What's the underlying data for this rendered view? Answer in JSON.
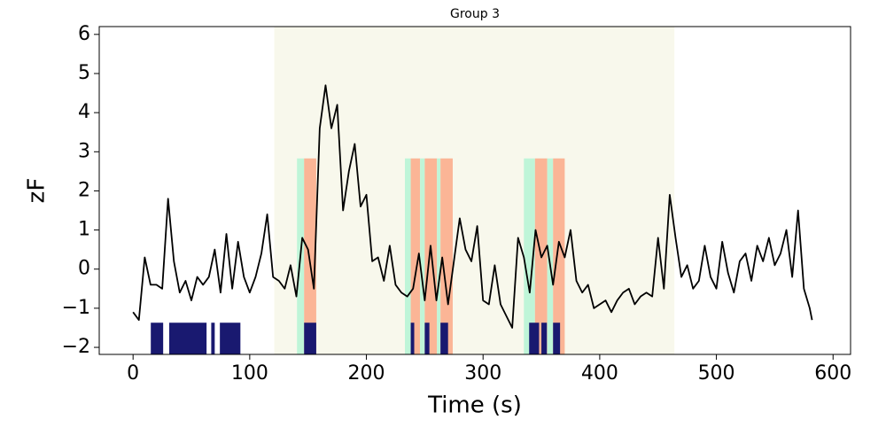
{
  "chart_data": {
    "type": "line",
    "title": "Group 3",
    "xlabel": "Time (s)",
    "ylabel": "zF",
    "xlim": [
      -29,
      615
    ],
    "ylim": [
      -2.18,
      6.2
    ],
    "xticks": [
      0,
      100,
      200,
      300,
      400,
      500,
      600
    ],
    "yticks": [
      {
        "value": -2,
        "label": "−2"
      },
      {
        "value": -1,
        "label": "−1"
      },
      0,
      1,
      2,
      3,
      4,
      5,
      6
    ],
    "regions": [
      {
        "x": [
          121,
          464
        ],
        "y": [
          -2.18,
          6.2
        ],
        "color": "#f8f8ec"
      },
      {
        "x": [
          140.5,
          146.6
        ],
        "y": [
          -2.18,
          2.83
        ],
        "color": "#bff5d8"
      },
      {
        "x": [
          146.6,
          157
        ],
        "y": [
          -2.18,
          2.83
        ],
        "color": "#fbb596"
      },
      {
        "x": [
          233,
          238
        ],
        "y": [
          -2.18,
          2.83
        ],
        "color": "#bff5d8"
      },
      {
        "x": [
          238,
          246
        ],
        "y": [
          -2.18,
          2.83
        ],
        "color": "#fbb596"
      },
      {
        "x": [
          246,
          250
        ],
        "y": [
          -2.18,
          2.83
        ],
        "color": "#bff5d8"
      },
      {
        "x": [
          250,
          260.5
        ],
        "y": [
          -2.18,
          2.83
        ],
        "color": "#fbb596"
      },
      {
        "x": [
          260.5,
          263.5
        ],
        "y": [
          -2.18,
          2.83
        ],
        "color": "#bff5d8"
      },
      {
        "x": [
          263.5,
          274
        ],
        "y": [
          -2.18,
          2.83
        ],
        "color": "#fbb596"
      },
      {
        "x": [
          335,
          344.5
        ],
        "y": [
          -2.18,
          2.83
        ],
        "color": "#bff5d8"
      },
      {
        "x": [
          344.5,
          355
        ],
        "y": [
          -2.18,
          2.83
        ],
        "color": "#fbb596"
      },
      {
        "x": [
          355,
          360
        ],
        "y": [
          -2.18,
          2.83
        ],
        "color": "#bff5d8"
      },
      {
        "x": [
          360,
          370
        ],
        "y": [
          -2.18,
          2.83
        ],
        "color": "#fbb596"
      },
      {
        "x": [
          15.2,
          25.8
        ],
        "y": [
          -2.18,
          -1.37
        ],
        "color": "#191970"
      },
      {
        "x": [
          31,
          63
        ],
        "y": [
          -2.18,
          -1.37
        ],
        "color": "#191970"
      },
      {
        "x": [
          67,
          70
        ],
        "y": [
          -2.18,
          -1.37
        ],
        "color": "#191970"
      },
      {
        "x": [
          74.4,
          92
        ],
        "y": [
          -2.18,
          -1.37
        ],
        "color": "#191970"
      },
      {
        "x": [
          146.6,
          157
        ],
        "y": [
          -2.18,
          -1.37
        ],
        "color": "#191970"
      },
      {
        "x": [
          238,
          241
        ],
        "y": [
          -2.18,
          -1.37
        ],
        "color": "#191970"
      },
      {
        "x": [
          250,
          254
        ],
        "y": [
          -2.18,
          -1.37
        ],
        "color": "#191970"
      },
      {
        "x": [
          263.5,
          270
        ],
        "y": [
          -2.18,
          -1.37
        ],
        "color": "#191970"
      },
      {
        "x": [
          339.5,
          348
        ],
        "y": [
          -2.18,
          -1.37
        ],
        "color": "#191970"
      },
      {
        "x": [
          350,
          354.7
        ],
        "y": [
          -2.18,
          -1.37
        ],
        "color": "#191970"
      },
      {
        "x": [
          360,
          366
        ],
        "y": [
          -2.18,
          -1.37
        ],
        "color": "#191970"
      }
    ],
    "x": [
      0,
      5,
      10,
      15,
      20,
      25,
      30,
      35,
      40,
      45,
      50,
      55,
      60,
      65,
      70,
      75,
      80,
      85,
      90,
      95,
      100,
      105,
      110,
      115,
      120,
      125,
      130,
      135,
      140,
      145,
      150,
      155,
      160,
      165,
      170,
      175,
      180,
      185,
      190,
      195,
      200,
      205,
      210,
      215,
      220,
      225,
      230,
      235,
      240,
      245,
      250,
      255,
      260,
      265,
      270,
      275,
      280,
      285,
      290,
      295,
      300,
      305,
      310,
      315,
      320,
      325,
      330,
      335,
      340,
      345,
      350,
      355,
      360,
      365,
      370,
      375,
      380,
      385,
      390,
      395,
      400,
      405,
      410,
      415,
      420,
      425,
      430,
      435,
      440,
      445,
      450,
      455,
      460,
      465,
      470,
      475,
      480,
      485,
      490,
      495,
      500,
      505,
      510,
      515,
      520,
      525,
      530,
      535,
      540,
      545,
      550,
      555,
      560,
      565,
      570,
      575,
      580,
      582
    ],
    "series": [
      {
        "color": "#000000",
        "values": [
          -1.1,
          -1.3,
          0.3,
          -0.4,
          -0.4,
          -0.5,
          1.8,
          0.2,
          -0.6,
          -0.3,
          -0.8,
          -0.2,
          -0.4,
          -0.2,
          0.5,
          -0.6,
          0.9,
          -0.5,
          0.7,
          -0.2,
          -0.6,
          -0.2,
          0.4,
          1.4,
          -0.2,
          -0.3,
          -0.5,
          0.1,
          -0.7,
          0.8,
          0.5,
          -0.5,
          3.6,
          4.7,
          3.6,
          4.2,
          1.5,
          2.5,
          3.2,
          1.6,
          1.9,
          0.2,
          0.3,
          -0.3,
          0.6,
          -0.4,
          -0.6,
          -0.7,
          -0.5,
          0.4,
          -0.8,
          0.6,
          -0.8,
          0.3,
          -0.9,
          0.2,
          1.3,
          0.5,
          0.2,
          1.1,
          -0.8,
          -0.9,
          0.1,
          -0.9,
          -1.2,
          -1.5,
          0.8,
          0.3,
          -0.6,
          1.0,
          0.3,
          0.6,
          -0.4,
          0.7,
          0.3,
          1.0,
          -0.3,
          -0.6,
          -0.4,
          -1.0,
          -0.9,
          -0.8,
          -1.1,
          -0.8,
          -0.6,
          -0.5,
          -0.9,
          -0.7,
          -0.6,
          -0.7,
          0.8,
          -0.5,
          1.9,
          0.8,
          -0.2,
          0.1,
          -0.5,
          -0.3,
          0.6,
          -0.2,
          -0.5,
          0.7,
          -0.1,
          -0.6,
          0.2,
          0.4,
          -0.3,
          0.6,
          0.2,
          0.8,
          0.1,
          0.4,
          1.0,
          -0.2,
          1.5,
          -0.5,
          -1.0,
          -1.3
        ]
      }
    ]
  }
}
